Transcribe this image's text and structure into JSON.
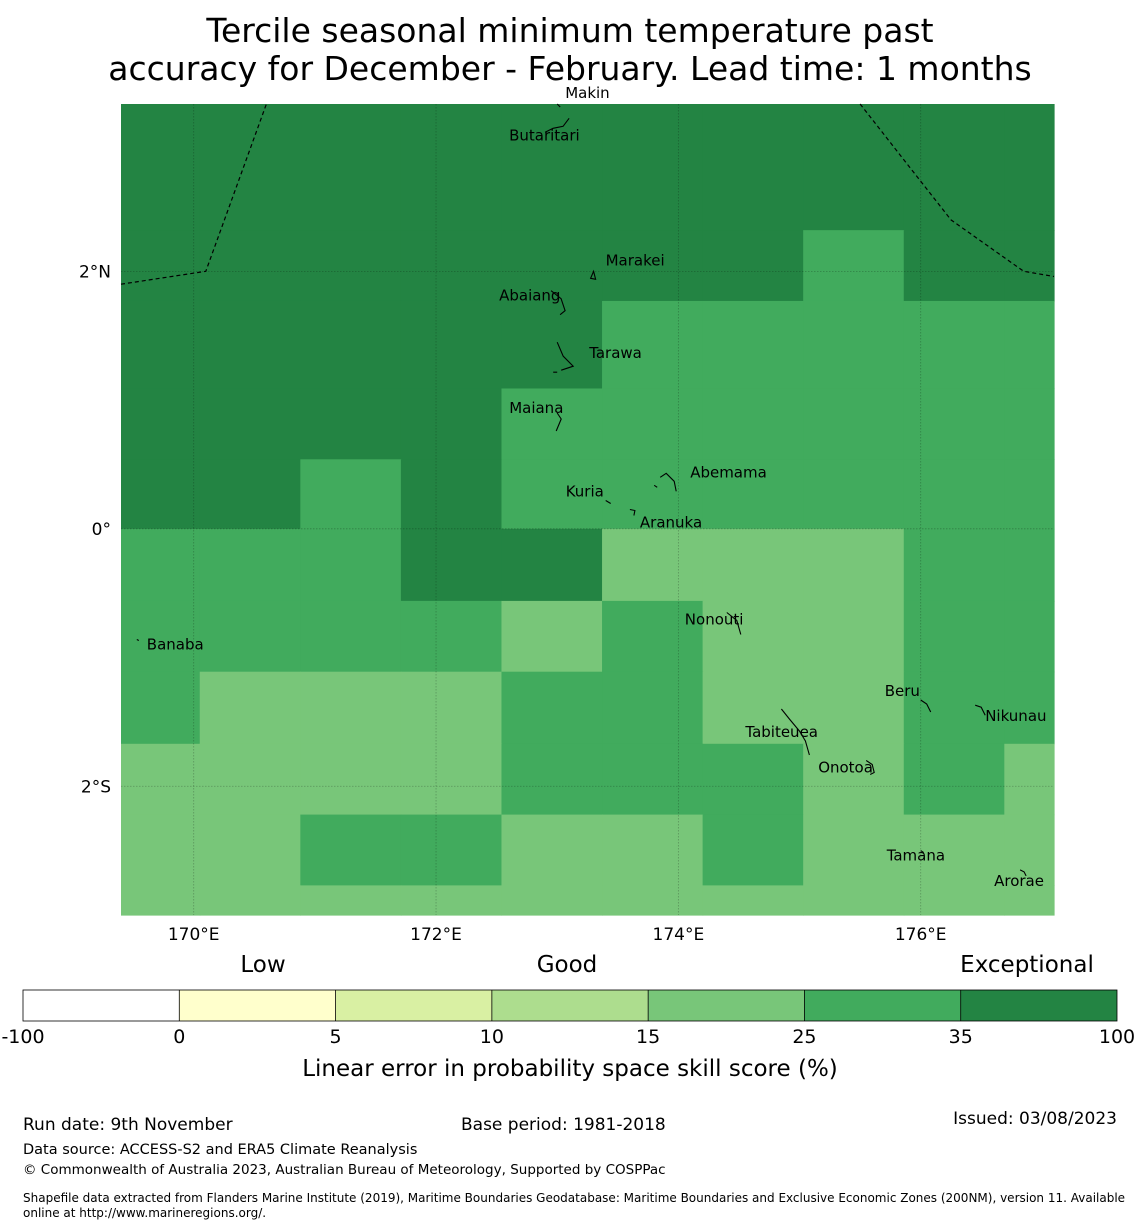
{
  "title": {
    "line1": "Tercile seasonal minimum temperature past",
    "line2": "accuracy for December - February. Lead time: 1 months"
  },
  "map": {
    "lon_range": [
      169.4,
      177.1
    ],
    "lat_range": [
      -3.0,
      3.3
    ],
    "x_ticks": [
      {
        "lon": 170,
        "label": "170°E"
      },
      {
        "lon": 172,
        "label": "172°E"
      },
      {
        "lon": 174,
        "label": "174°E"
      },
      {
        "lon": 176,
        "label": "176°E"
      }
    ],
    "y_ticks": [
      {
        "lat": 2,
        "label": "2°N"
      },
      {
        "lat": 0,
        "label": "0°"
      },
      {
        "lat": -2,
        "label": "2°S"
      }
    ],
    "grid": {
      "lon_edges": [
        169.4,
        170.05,
        170.88,
        171.71,
        172.54,
        173.37,
        174.2,
        175.03,
        175.86,
        176.69,
        177.1
      ],
      "lat_edges": [
        3.3,
        2.32,
        1.77,
        1.09,
        0.54,
        0.0,
        -0.56,
        -1.11,
        -1.67,
        -2.22,
        -2.77,
        -3.0
      ],
      "classes": [
        [
          35,
          35,
          35,
          35,
          35,
          35,
          35,
          35,
          35,
          35
        ],
        [
          35,
          35,
          35,
          35,
          35,
          35,
          35,
          25,
          35,
          35
        ],
        [
          35,
          35,
          35,
          35,
          35,
          25,
          25,
          25,
          25,
          25
        ],
        [
          35,
          35,
          35,
          35,
          25,
          25,
          25,
          25,
          25,
          25
        ],
        [
          35,
          35,
          25,
          35,
          25,
          25,
          25,
          25,
          25,
          25
        ],
        [
          25,
          25,
          25,
          35,
          35,
          15,
          15,
          15,
          25,
          25
        ],
        [
          25,
          25,
          25,
          25,
          15,
          25,
          15,
          15,
          25,
          25
        ],
        [
          25,
          15,
          15,
          15,
          25,
          25,
          15,
          15,
          25,
          25
        ],
        [
          15,
          15,
          15,
          15,
          25,
          25,
          25,
          15,
          25,
          15
        ],
        [
          15,
          15,
          25,
          25,
          15,
          15,
          25,
          15,
          15,
          15
        ],
        [
          15,
          15,
          15,
          15,
          15,
          15,
          15,
          15,
          15,
          15
        ]
      ]
    },
    "boundaries": [
      [
        [
          169.4,
          1.9
        ],
        [
          170.1,
          2.0
        ],
        [
          170.6,
          3.3
        ]
      ],
      [
        [
          175.5,
          3.3
        ],
        [
          176.25,
          2.4
        ],
        [
          176.85,
          2.0
        ],
        [
          177.1,
          1.96
        ]
      ]
    ],
    "islands": [
      {
        "name": "Makin",
        "lon": 173.0,
        "lat": 3.3,
        "label_dx": 0,
        "label_dy": 0
      },
      {
        "name": "Butaritari",
        "lon": 172.9,
        "lat": 3.08
      },
      {
        "name": "Marakei",
        "lon": 173.3,
        "lat": 2.0
      },
      {
        "name": "Abaiang",
        "lon": 172.95,
        "lat": 1.85
      },
      {
        "name": "Tarawa",
        "lon": 173.0,
        "lat": 1.45
      },
      {
        "name": "Maiana",
        "lon": 173.0,
        "lat": 0.9
      },
      {
        "name": "Abemama",
        "lon": 173.85,
        "lat": 0.4
      },
      {
        "name": "Kuria",
        "lon": 173.4,
        "lat": 0.22
      },
      {
        "name": "Aranuka",
        "lon": 173.6,
        "lat": 0.15
      },
      {
        "name": "Nonouti",
        "lon": 174.4,
        "lat": -0.65
      },
      {
        "name": "Banaba",
        "lon": 169.53,
        "lat": -0.86
      },
      {
        "name": "Tabiteuea",
        "lon": 174.85,
        "lat": -1.4
      },
      {
        "name": "Beru",
        "lon": 176.0,
        "lat": -1.33
      },
      {
        "name": "Nikunau",
        "lon": 176.45,
        "lat": -1.37
      },
      {
        "name": "Onotoa",
        "lon": 175.55,
        "lat": -1.8
      },
      {
        "name": "Tamana",
        "lon": 176.0,
        "lat": -2.5
      },
      {
        "name": "Arorae",
        "lon": 176.82,
        "lat": -2.65
      }
    ]
  },
  "legend": {
    "categories": [
      "Low",
      "Good",
      "Exceptional"
    ],
    "bins": [
      {
        "from": -100,
        "to": 0,
        "color": "#ffffff"
      },
      {
        "from": 0,
        "to": 5,
        "color": "#ffffcc"
      },
      {
        "from": 5,
        "to": 10,
        "color": "#d9f0a3"
      },
      {
        "from": 10,
        "to": 15,
        "color": "#addd8e"
      },
      {
        "from": 15,
        "to": 25,
        "color": "#78c679"
      },
      {
        "from": 25,
        "to": 35,
        "color": "#41ab5d"
      },
      {
        "from": 35,
        "to": 100,
        "color": "#238443"
      }
    ],
    "tick_labels": [
      "-100",
      "0",
      "5",
      "10",
      "15",
      "25",
      "35",
      "100"
    ],
    "axis_label": "Linear error in probability space skill score (%)"
  },
  "colors": {
    "class_15": "#78c679",
    "class_25": "#41ab5d",
    "class_35": "#238443",
    "coast": "#000000",
    "boundary": "#000000"
  },
  "footer": {
    "run_date": "Run date: 9th November",
    "base_period": "Base period: 1981-2018",
    "issued": "Issued: 03/08/2023",
    "data_source": "Data source: ACCESS-S2 and ERA5 Climate Reanalysis",
    "copyright": "© Commonwealth of Australia 2023, Australian Bureau of Meteorology, Supported by COSPPac",
    "shapefile_line1": "Shapefile data extracted from Flanders Marine Institute (2019), Maritime Boundaries Geodatabase: Maritime Boundaries and Exclusive Economic Zones (200NM), version 11. Available",
    "shapefile_line2": "online at http://www.marineregions.org/."
  }
}
